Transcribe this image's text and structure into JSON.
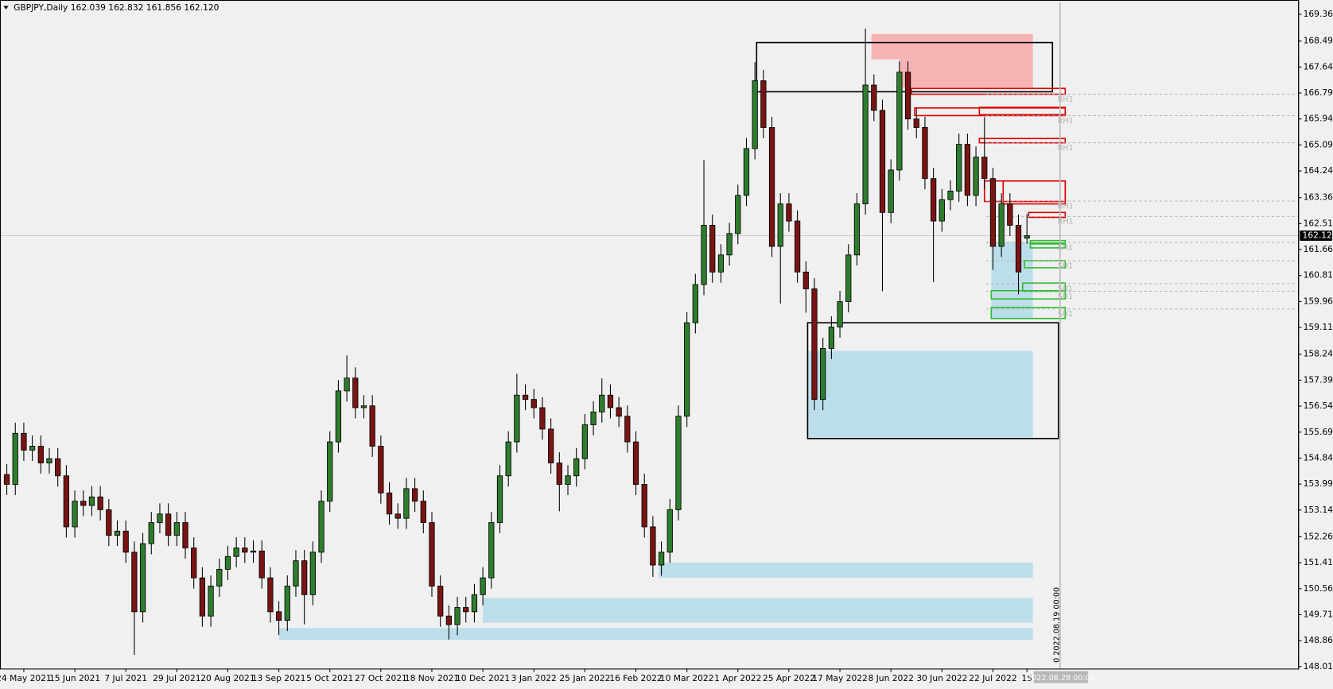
{
  "chart_data": {
    "type": "candlestick",
    "title": "GBPJPY,Daily  162.039 162.832 161.856 162.120",
    "up_color": "#2e7d2e",
    "down_color": "#7a1414",
    "categories": [
      null,
      null,
      "24 May 2021",
      null,
      null,
      null,
      null,
      null,
      "15 Jun 2021",
      null,
      null,
      null,
      null,
      null,
      "7 Jul 2021",
      null,
      null,
      null,
      null,
      null,
      "29 Jul 2021",
      null,
      null,
      null,
      null,
      null,
      "20 Aug 2021",
      null,
      null,
      null,
      null,
      null,
      "13 Sep 2021",
      null,
      null,
      null,
      null,
      null,
      "5 Oct 2021",
      null,
      null,
      null,
      null,
      null,
      "27 Oct 2021",
      null,
      null,
      null,
      null,
      null,
      "18 Nov 2021",
      null,
      null,
      null,
      null,
      null,
      "10 Dec 2021",
      null,
      null,
      null,
      null,
      null,
      "3 Jan 2022",
      null,
      null,
      null,
      null,
      null,
      "25 Jan 2022",
      null,
      null,
      null,
      null,
      null,
      "16 Feb 2022",
      null,
      null,
      null,
      null,
      null,
      "10 Mar 2022",
      null,
      null,
      null,
      null,
      null,
      "1 Apr 2022",
      null,
      null,
      null,
      null,
      null,
      "25 Apr 2022",
      null,
      null,
      null,
      null,
      null,
      "17 May 2022",
      null,
      null,
      null,
      null,
      null,
      "8 Jun 2022",
      null,
      null,
      null,
      null,
      null,
      "30 Jun 2022",
      null,
      null,
      null,
      null,
      null,
      "22 Jul 2022",
      null,
      null,
      null,
      "15"
    ],
    "open": [
      154.3,
      153.98,
      155.65,
      155.1,
      155.23,
      154.68,
      154.82,
      154.26,
      152.59,
      153.43,
      153.29,
      153.57,
      153.15,
      152.31,
      152.45,
      151.76,
      149.81,
      152.04,
      152.73,
      153.01,
      152.31,
      152.73,
      151.9,
      150.92,
      149.67,
      150.65,
      151.2,
      151.62,
      151.9,
      151.76,
      151.8,
      150.92,
      149.81,
      149.53,
      150.65,
      151.48,
      150.37,
      151.76,
      153.43,
      155.37,
      157.04,
      157.46,
      156.49,
      156.55,
      155.23,
      153.7,
      153.01,
      152.87,
      153.84,
      153.43,
      152.73,
      150.65,
      149.67,
      149.39,
      149.95,
      149.81,
      150.37,
      150.92,
      152.73,
      154.26,
      155.37,
      156.9,
      156.76,
      156.49,
      155.79,
      154.68,
      153.98,
      154.26,
      154.82,
      155.93,
      156.35,
      156.9,
      156.49,
      156.21,
      155.37,
      153.98,
      152.59,
      151.34,
      151.76,
      153.15,
      156.21,
      159.27,
      160.52,
      162.46,
      160.93,
      161.49,
      162.19,
      163.44,
      164.97,
      167.19,
      165.66,
      161.77,
      163.16,
      162.6,
      160.93,
      160.38,
      156.76,
      158.43,
      159.13,
      159.96,
      161.49,
      163.16,
      167.05,
      166.22,
      162.88,
      164.27,
      167.47,
      165.94,
      165.66,
      163.99,
      162.6,
      163.3,
      163.58,
      165.11,
      163.44,
      164.69,
      163.99,
      161.77,
      163.16,
      162.46,
      162.039
    ],
    "high": [
      154.65,
      156.0,
      156.0,
      155.58,
      155.58,
      155.17,
      155.17,
      154.61,
      153.78,
      153.78,
      153.92,
      153.92,
      153.5,
      152.8,
      152.8,
      152.11,
      152.39,
      153.08,
      153.36,
      153.36,
      153.08,
      153.08,
      152.25,
      151.27,
      151.0,
      151.55,
      151.97,
      152.25,
      152.25,
      152.15,
      152.15,
      151.27,
      150.16,
      151.0,
      151.83,
      151.83,
      152.11,
      153.78,
      155.72,
      157.39,
      158.2,
      157.81,
      156.9,
      156.9,
      155.58,
      154.05,
      153.36,
      154.19,
      154.19,
      153.78,
      153.08,
      151.0,
      150.02,
      150.3,
      150.3,
      150.72,
      151.27,
      153.08,
      154.61,
      155.72,
      157.6,
      157.25,
      157.11,
      156.84,
      156.14,
      155.03,
      154.61,
      155.17,
      156.28,
      156.7,
      157.45,
      157.25,
      156.84,
      156.56,
      155.72,
      154.33,
      152.94,
      152.11,
      153.5,
      156.56,
      159.62,
      160.87,
      164.6,
      162.81,
      161.84,
      162.54,
      163.79,
      165.32,
      167.8,
      167.54,
      166.01,
      163.51,
      163.51,
      162.95,
      161.28,
      160.73,
      158.78,
      159.48,
      160.31,
      161.84,
      163.51,
      168.9,
      167.4,
      166.57,
      164.62,
      167.82,
      167.82,
      166.29,
      166.01,
      164.34,
      163.65,
      163.93,
      165.46,
      165.46,
      165.04,
      166.0,
      164.34,
      163.51,
      163.51,
      162.81,
      162.832
    ],
    "low": [
      153.63,
      153.63,
      154.75,
      154.75,
      154.33,
      154.33,
      153.91,
      152.24,
      152.24,
      152.94,
      152.94,
      152.8,
      151.96,
      151.96,
      151.41,
      148.4,
      149.46,
      151.69,
      152.38,
      151.96,
      151.96,
      151.55,
      150.57,
      149.32,
      149.32,
      150.3,
      150.85,
      151.27,
      151.41,
      151.41,
      150.57,
      149.46,
      149.05,
      149.18,
      150.3,
      149.4,
      150.02,
      151.41,
      153.08,
      155.02,
      156.69,
      156.14,
      156.14,
      154.88,
      153.35,
      152.66,
      152.52,
      152.52,
      153.08,
      152.38,
      150.3,
      149.32,
      148.9,
      149.04,
      149.46,
      149.46,
      150.02,
      150.57,
      152.38,
      153.91,
      155.02,
      156.41,
      156.14,
      155.44,
      154.33,
      153.1,
      153.63,
      153.91,
      154.47,
      155.58,
      156.0,
      156.14,
      155.86,
      155.02,
      153.63,
      152.24,
      150.95,
      150.99,
      151.41,
      152.8,
      155.86,
      158.92,
      160.17,
      160.58,
      160.58,
      161.14,
      161.84,
      163.09,
      164.62,
      165.31,
      161.42,
      159.9,
      162.25,
      160.58,
      159.6,
      156.41,
      156.41,
      158.08,
      158.78,
      159.61,
      161.14,
      162.81,
      165.87,
      160.3,
      162.53,
      163.92,
      165.59,
      165.31,
      163.64,
      160.6,
      162.25,
      162.95,
      163.23,
      163.09,
      163.09,
      163.64,
      161.0,
      161.42,
      162.11,
      160.2,
      161.856
    ],
    "close": [
      153.98,
      155.65,
      155.1,
      155.23,
      154.68,
      154.82,
      154.26,
      152.59,
      153.43,
      153.29,
      153.57,
      153.15,
      152.31,
      152.45,
      151.76,
      149.81,
      152.04,
      152.73,
      153.01,
      152.31,
      152.73,
      151.9,
      150.92,
      149.67,
      150.65,
      151.2,
      151.62,
      151.9,
      151.76,
      151.8,
      150.92,
      149.81,
      149.53,
      150.65,
      151.48,
      150.37,
      151.76,
      153.43,
      155.37,
      157.04,
      157.46,
      156.49,
      156.55,
      155.23,
      153.7,
      153.01,
      152.87,
      153.84,
      153.43,
      152.73,
      150.65,
      149.67,
      149.39,
      149.95,
      149.81,
      150.37,
      150.92,
      152.73,
      154.26,
      155.37,
      156.9,
      156.76,
      156.49,
      155.79,
      154.68,
      153.98,
      154.26,
      154.82,
      155.93,
      156.35,
      156.9,
      156.49,
      156.21,
      155.37,
      153.98,
      152.59,
      151.34,
      151.76,
      153.15,
      156.21,
      159.27,
      160.52,
      162.46,
      160.93,
      161.49,
      162.19,
      163.44,
      164.97,
      167.19,
      165.66,
      161.77,
      163.16,
      162.6,
      160.93,
      160.38,
      156.76,
      158.43,
      159.13,
      159.96,
      161.49,
      163.16,
      167.05,
      166.22,
      162.88,
      164.27,
      167.47,
      165.94,
      165.66,
      163.99,
      162.6,
      163.3,
      163.58,
      165.11,
      163.44,
      164.69,
      163.99,
      161.77,
      163.16,
      162.46,
      160.93,
      162.12
    ],
    "ylim": [
      147.95,
      169.75
    ],
    "yticks": [
      169.365,
      {
        "value": 168.49,
        "label": "168.490"
      },
      {
        "value": 167.64,
        "label": "167.640"
      },
      {
        "value": 166.79,
        "label": "166.790"
      },
      {
        "value": 165.94,
        "label": "165.940"
      },
      {
        "value": 165.09,
        "label": "165.090"
      },
      {
        "value": 164.24,
        "label": "164.240"
      },
      163.365,
      162.515,
      161.665,
      160.815,
      159.965,
      159.115,
      {
        "value": 158.24,
        "label": "158.240"
      },
      {
        "value": 157.39,
        "label": "157.390"
      },
      {
        "value": 156.54,
        "label": "156.540"
      },
      {
        "value": 155.69,
        "label": "155.690"
      },
      {
        "value": 154.84,
        "label": "154.840"
      },
      {
        "value": 153.99,
        "label": "153.990"
      },
      {
        "value": 153.14,
        "label": "153.140"
      },
      152.265,
      151.415,
      150.565,
      149.715,
      148.865,
      148.015
    ],
    "current_price": {
      "value": 162.12,
      "label": "162.120"
    },
    "zones": [
      {
        "top": 168.72,
        "bottom": 167.89,
        "fill": "#f6b3b3"
      },
      {
        "top": 167.89,
        "bottom": 166.97,
        "fill": "#f6b3b3"
      },
      {
        "top": 161.91,
        "bottom": 159.41,
        "fill": "#bcdeeb"
      },
      {
        "top": 158.35,
        "bottom": 155.51,
        "fill": "#bcdeeb"
      },
      {
        "top": 151.42,
        "bottom": 150.92,
        "fill": "#bcdeeb"
      },
      {
        "top": 150.26,
        "bottom": 149.45,
        "fill": "#bcdeeb"
      },
      {
        "top": 149.28,
        "bottom": 148.89,
        "fill": "#bcdeeb"
      },
      {
        "top": 168.44,
        "bottom": 166.83,
        "stroke": "#000000"
      },
      {
        "top": 159.27,
        "bottom": 155.48,
        "stroke": "#000000"
      },
      {
        "top": 166.94,
        "bottom": 166.75,
        "stroke": "#e00000"
      },
      {
        "top": 166.3,
        "bottom": 166.05,
        "stroke": "#e00000"
      },
      {
        "top": 166.32,
        "bottom": 166.08,
        "stroke": "#e00000"
      },
      {
        "top": 165.3,
        "bottom": 165.16,
        "stroke": "#e00000"
      },
      {
        "top": 163.91,
        "bottom": 163.24,
        "stroke": "#e00000"
      },
      {
        "top": 163.91,
        "bottom": 163.16,
        "stroke": "#e00000"
      },
      {
        "top": 162.88,
        "bottom": 162.72,
        "stroke": "#e00000"
      },
      {
        "top": 161.96,
        "bottom": 161.85,
        "stroke": "#2ebd2e"
      },
      {
        "top": 161.88,
        "bottom": 161.72,
        "stroke": "#2ebd2e"
      },
      {
        "top": 161.3,
        "bottom": 161.07,
        "stroke": "#2ebd2e"
      },
      {
        "top": 160.57,
        "bottom": 160.3,
        "stroke": "#2ebd2e"
      },
      {
        "top": 160.32,
        "bottom": 160.05,
        "stroke": "#2ebd2e"
      },
      {
        "top": 159.77,
        "bottom": 159.41,
        "stroke": "#2ebd2e"
      }
    ],
    "levels": [
      {
        "value": 166.75,
        "label": "RH1"
      },
      {
        "value": 166.05,
        "label": "RH1"
      },
      {
        "value": 165.16,
        "label": "RH1"
      },
      {
        "value": 163.25,
        "label": "RH1"
      },
      {
        "value": 162.75,
        "label": "RH1"
      },
      {
        "value": 161.9,
        "label": "SH1"
      },
      {
        "value": 161.3,
        "label": "SH1"
      },
      {
        "value": 160.55,
        "label": "SH1"
      },
      {
        "value": 160.3,
        "label": "SH1"
      },
      {
        "value": 159.72,
        "label": "SH1"
      }
    ],
    "vline_label": "0 2022.08.19 00:00",
    "cursor_date": "2022.08.28 00:00"
  }
}
